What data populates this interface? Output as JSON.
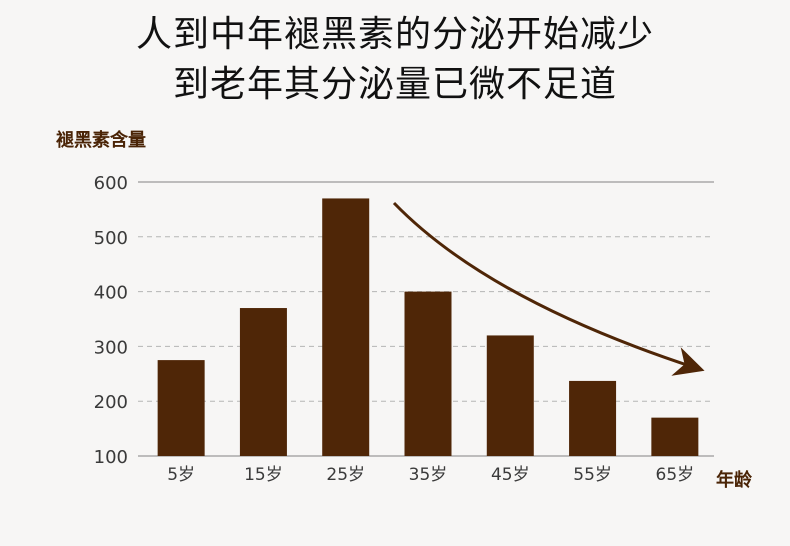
{
  "title": {
    "line1": "人到中年褪黑素的分泌开始减少",
    "line2": "到老年其分泌量已微不足道"
  },
  "colors": {
    "bar": "#4f2607",
    "arrow": "#4f2607",
    "axis_label": "#4a2406",
    "grid": "#b5b5b5",
    "background": "#f7f6f5"
  },
  "chart_data": {
    "type": "bar",
    "title": "人到中年褪黑素的分泌开始减少 到老年其分泌量已微不足道",
    "ylabel": "褪黑素含量",
    "xlabel": "年龄",
    "categories": [
      "5岁",
      "15岁",
      "25岁",
      "35岁",
      "45岁",
      "55岁",
      "65岁"
    ],
    "values": [
      275,
      370,
      570,
      400,
      320,
      237,
      170
    ],
    "ylim": [
      100,
      600
    ],
    "yticks": [
      100,
      200,
      300,
      400,
      500,
      600
    ],
    "grid": true,
    "annotations": [
      {
        "type": "arrow",
        "description": "decreasing trend arrow from 35岁 to 65岁"
      }
    ]
  }
}
